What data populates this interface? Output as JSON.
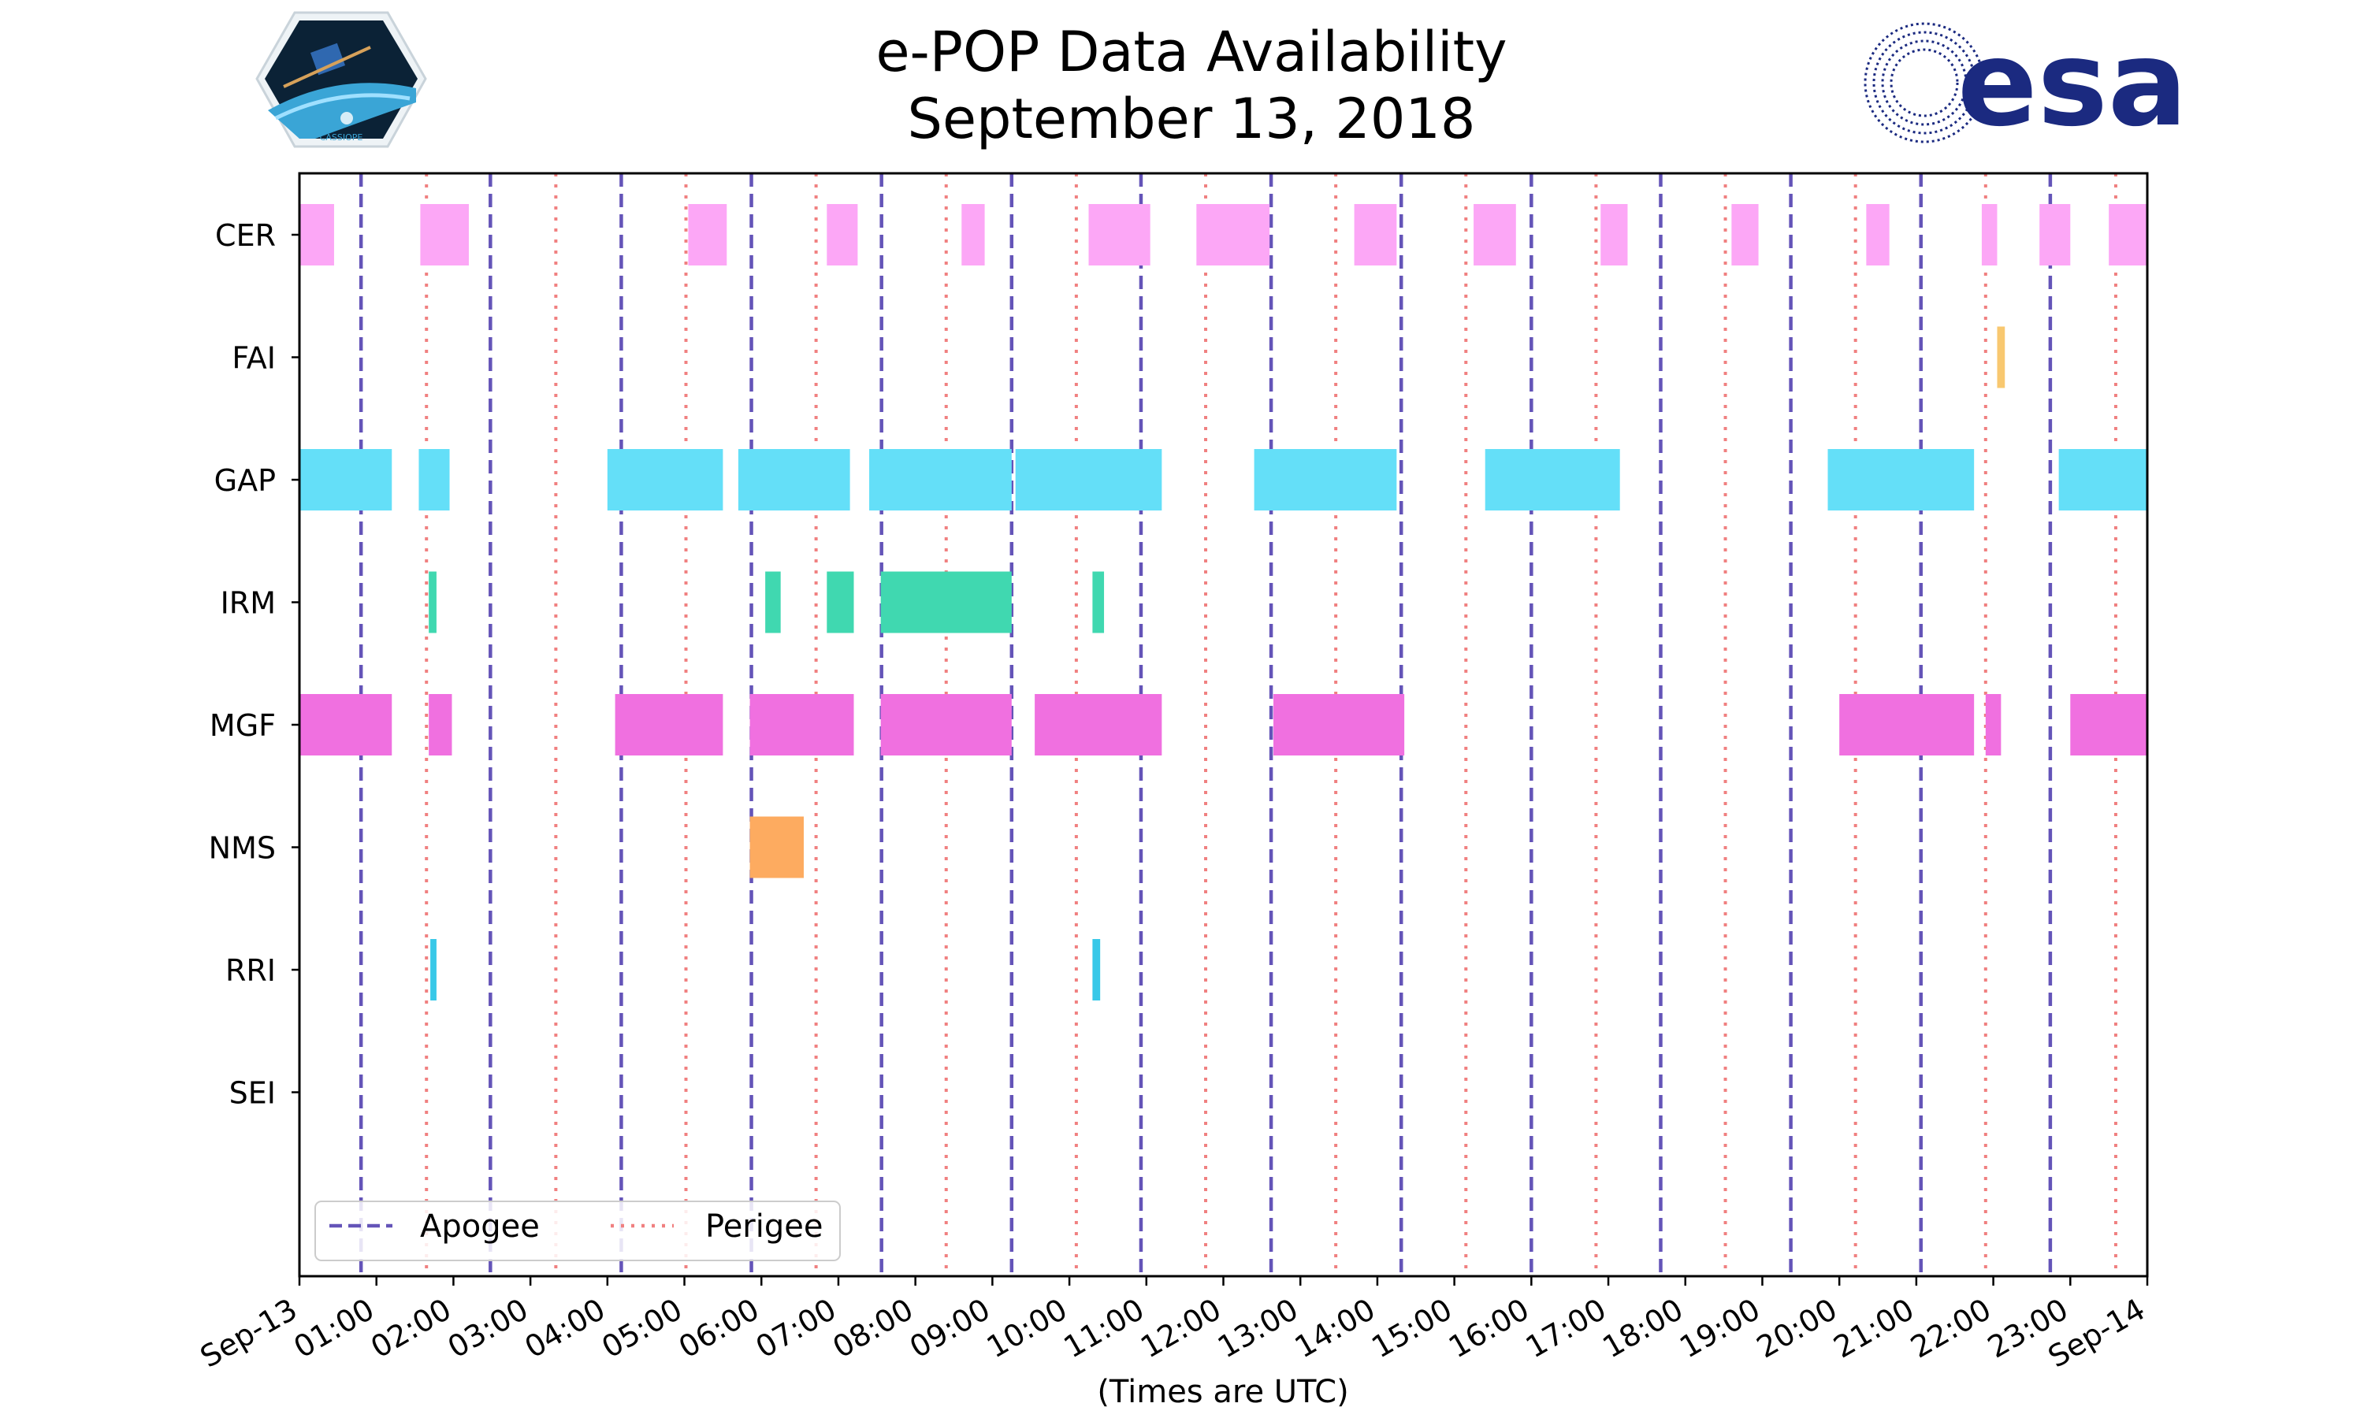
{
  "chart_data": {
    "type": "gantt",
    "title": "e-POP Data Availability",
    "subtitle": "September 13, 2018",
    "xlabel": "(Times are UTC)",
    "x_unit": "hours",
    "xlim": [
      0,
      24
    ],
    "x_ticks": [
      {
        "hour": 0,
        "label": "Sep-13"
      },
      {
        "hour": 1,
        "label": "01:00"
      },
      {
        "hour": 2,
        "label": "02:00"
      },
      {
        "hour": 3,
        "label": "03:00"
      },
      {
        "hour": 4,
        "label": "04:00"
      },
      {
        "hour": 5,
        "label": "05:00"
      },
      {
        "hour": 6,
        "label": "06:00"
      },
      {
        "hour": 7,
        "label": "07:00"
      },
      {
        "hour": 8,
        "label": "08:00"
      },
      {
        "hour": 9,
        "label": "09:00"
      },
      {
        "hour": 10,
        "label": "10:00"
      },
      {
        "hour": 11,
        "label": "11:00"
      },
      {
        "hour": 12,
        "label": "12:00"
      },
      {
        "hour": 13,
        "label": "13:00"
      },
      {
        "hour": 14,
        "label": "14:00"
      },
      {
        "hour": 15,
        "label": "15:00"
      },
      {
        "hour": 16,
        "label": "16:00"
      },
      {
        "hour": 17,
        "label": "17:00"
      },
      {
        "hour": 18,
        "label": "18:00"
      },
      {
        "hour": 19,
        "label": "19:00"
      },
      {
        "hour": 20,
        "label": "20:00"
      },
      {
        "hour": 21,
        "label": "21:00"
      },
      {
        "hour": 22,
        "label": "22:00"
      },
      {
        "hour": 23,
        "label": "23:00"
      },
      {
        "hour": 24,
        "label": "Sep-14"
      }
    ],
    "instruments": [
      {
        "name": "CER",
        "color": "#fca7f6",
        "intervals": [
          [
            0.0,
            0.45
          ],
          [
            1.57,
            2.2
          ],
          [
            5.05,
            5.55
          ],
          [
            6.85,
            7.25
          ],
          [
            8.6,
            8.9
          ],
          [
            10.25,
            11.05
          ],
          [
            11.65,
            12.6
          ],
          [
            13.7,
            14.25
          ],
          [
            15.25,
            15.8
          ],
          [
            16.9,
            17.25
          ],
          [
            18.6,
            18.95
          ],
          [
            20.35,
            20.65
          ],
          [
            21.85,
            22.05
          ],
          [
            22.6,
            23.0
          ],
          [
            23.5,
            24.0
          ]
        ]
      },
      {
        "name": "FAI",
        "color": "#f8c870",
        "intervals": [
          [
            22.05,
            22.15
          ]
        ]
      },
      {
        "name": "GAP",
        "color": "#64dff8",
        "intervals": [
          [
            0.0,
            1.2
          ],
          [
            1.55,
            1.95
          ],
          [
            4.0,
            5.5
          ],
          [
            5.7,
            7.15
          ],
          [
            7.4,
            9.25
          ],
          [
            9.3,
            11.2
          ],
          [
            12.4,
            14.25
          ],
          [
            15.4,
            17.15
          ],
          [
            19.85,
            21.75
          ],
          [
            22.85,
            24.0
          ]
        ]
      },
      {
        "name": "IRM",
        "color": "#40d8b0",
        "intervals": [
          [
            1.68,
            1.78
          ],
          [
            6.05,
            6.25
          ],
          [
            6.85,
            7.2
          ],
          [
            7.55,
            9.25
          ],
          [
            10.3,
            10.45
          ]
        ]
      },
      {
        "name": "MGF",
        "color": "#f070e0",
        "intervals": [
          [
            0.0,
            1.2
          ],
          [
            1.68,
            1.98
          ],
          [
            4.1,
            5.5
          ],
          [
            5.85,
            7.2
          ],
          [
            7.55,
            9.25
          ],
          [
            9.55,
            11.2
          ],
          [
            12.65,
            14.35
          ],
          [
            20.0,
            21.75
          ],
          [
            21.9,
            22.1
          ],
          [
            23.0,
            24.0
          ]
        ]
      },
      {
        "name": "NMS",
        "color": "#fdab60",
        "intervals": [
          [
            5.85,
            6.55
          ]
        ]
      },
      {
        "name": "RRI",
        "color": "#38c8e8",
        "intervals": [
          [
            1.7,
            1.78
          ],
          [
            10.3,
            10.4
          ]
        ]
      },
      {
        "name": "SEI",
        "color": "#cccccc",
        "intervals": []
      }
    ],
    "apogee": [
      0.8,
      2.48,
      4.18,
      5.87,
      7.56,
      9.25,
      10.93,
      12.62,
      14.31,
      16.0,
      17.68,
      19.37,
      21.06,
      22.74
    ],
    "perigee": [
      1.65,
      3.33,
      5.02,
      6.71,
      8.4,
      10.09,
      11.77,
      13.46,
      15.15,
      16.84,
      18.52,
      20.21,
      21.9,
      23.59
    ],
    "legend": {
      "position": "lower-left",
      "apogee_label": "Apogee",
      "perigee_label": "Perigee"
    },
    "colors": {
      "apogee": "#6454b8",
      "perigee": "#f08080"
    }
  },
  "logos": {
    "left": {
      "name": "CASSIOPE mission patch",
      "text": "CASSIOPE"
    },
    "right": {
      "name": "esa",
      "text": "esa",
      "color": "#1b2a80"
    }
  }
}
